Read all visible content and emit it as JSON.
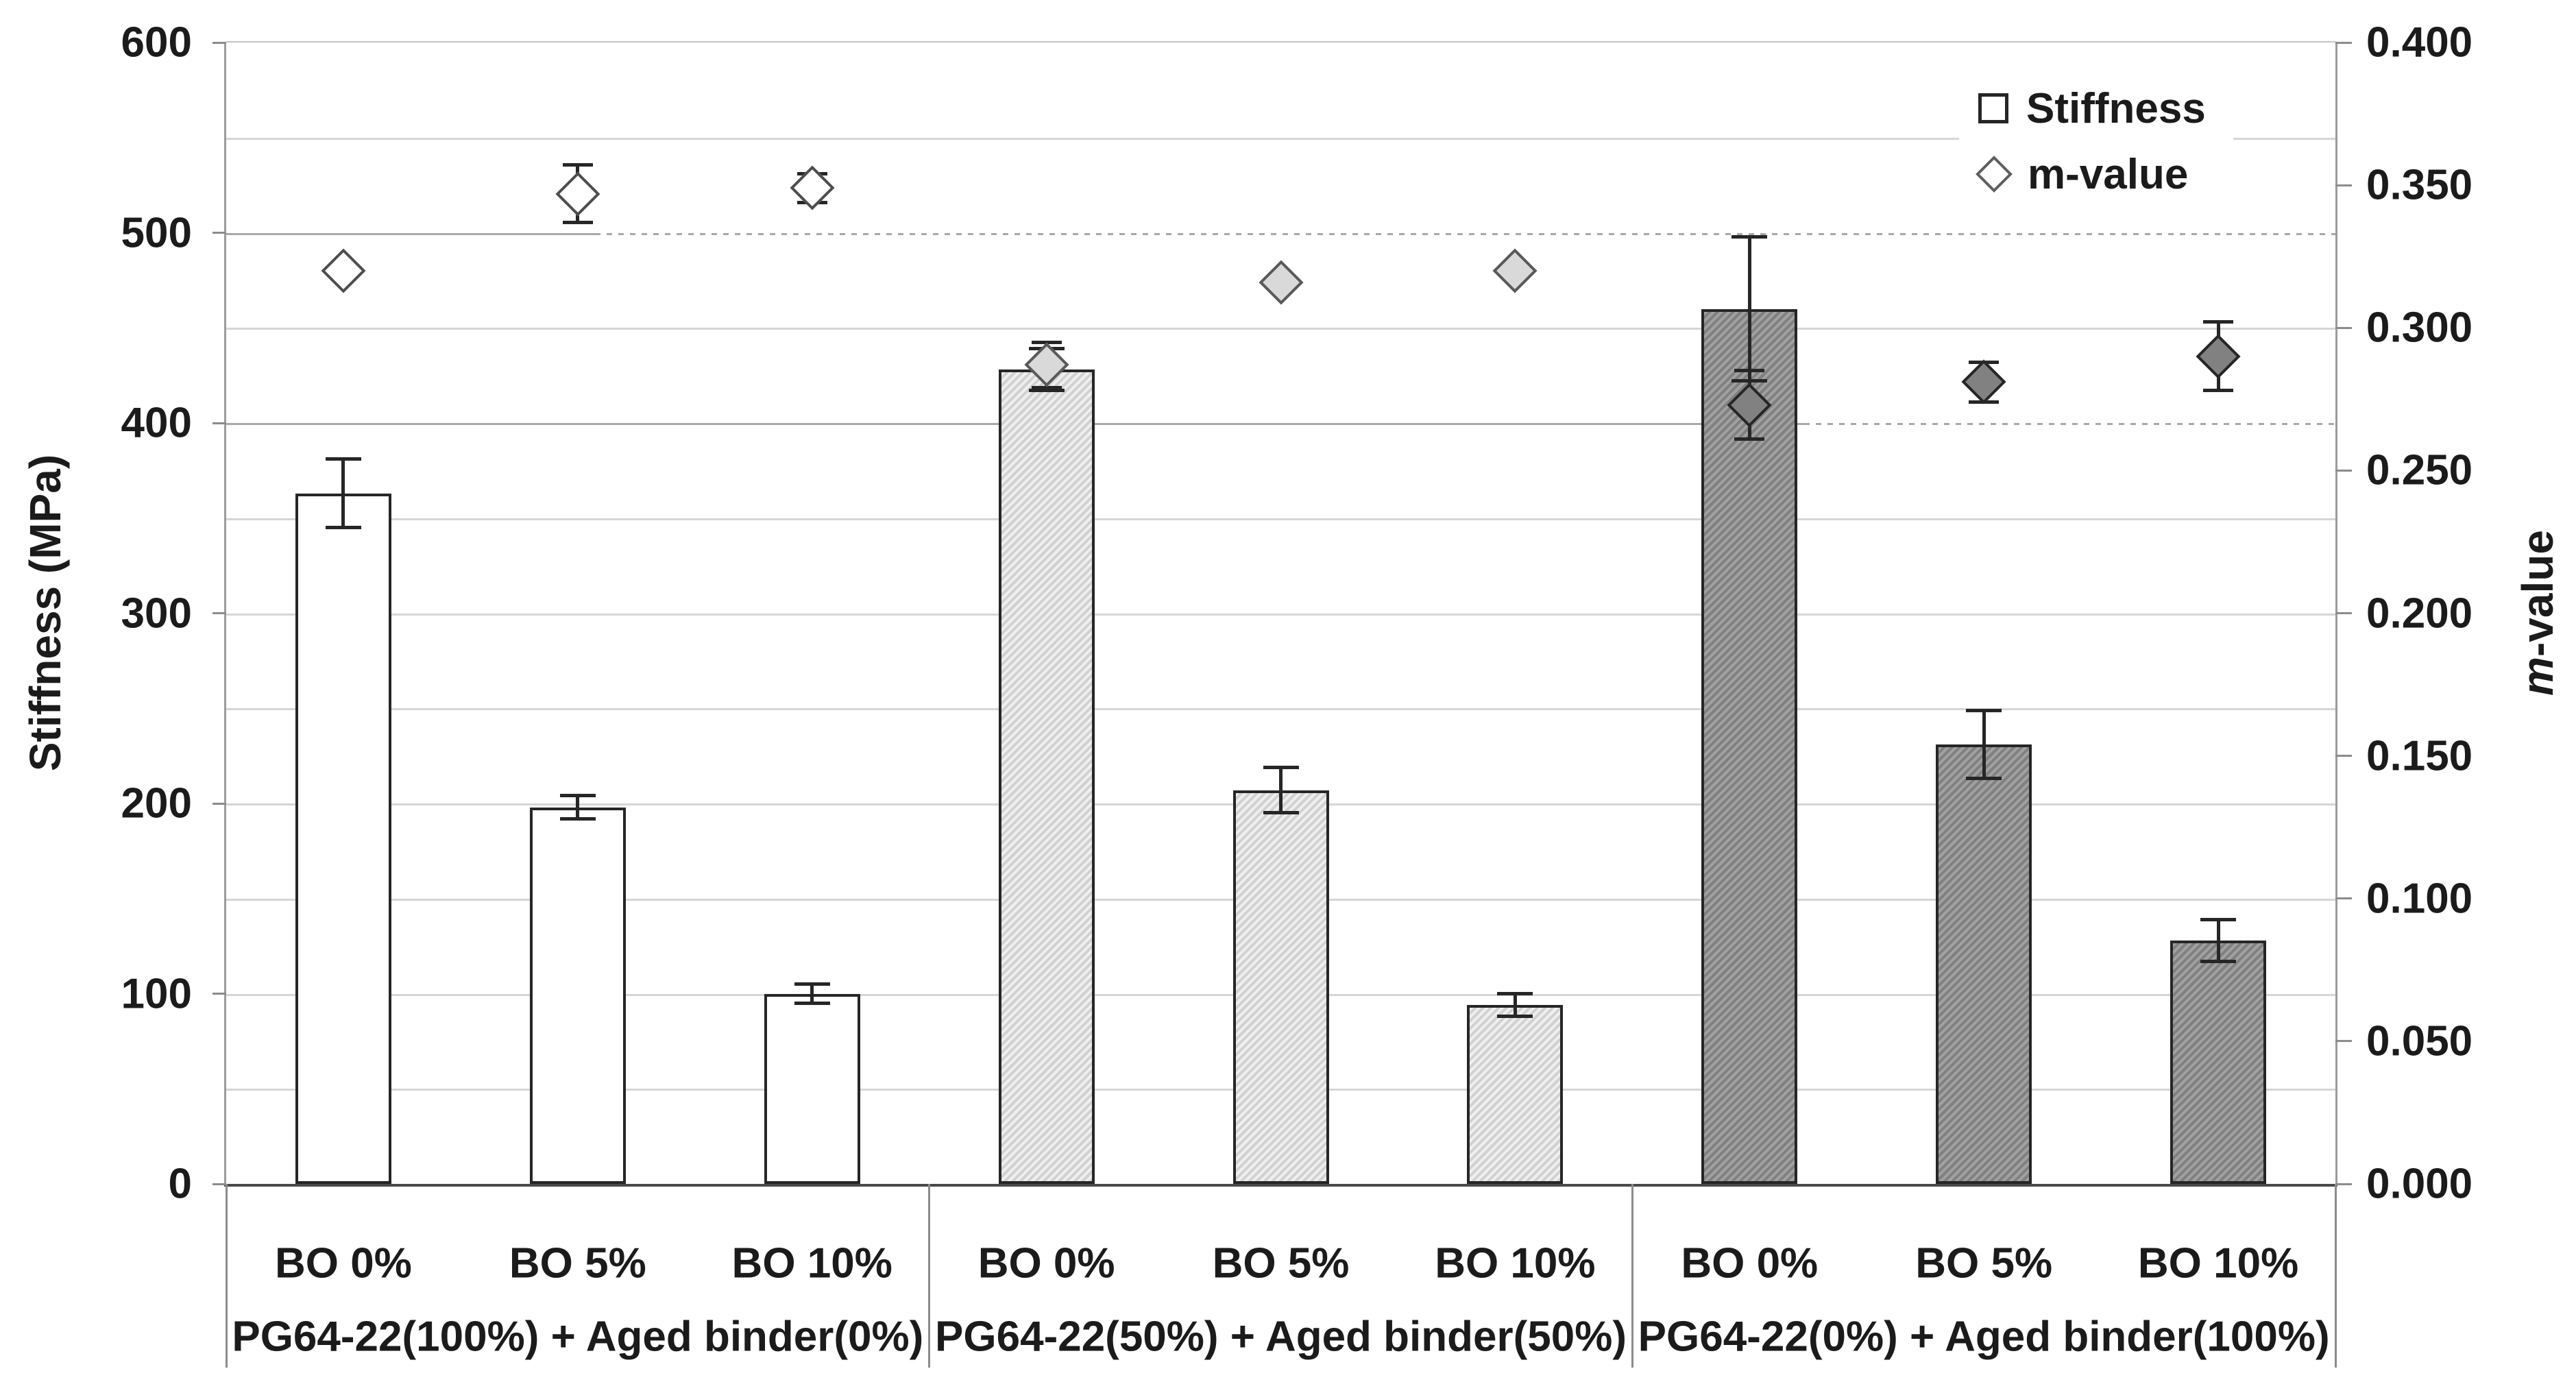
{
  "chart_data": {
    "type": "bar",
    "subtype": "dual-axis bar + diamond scatter with error bars",
    "categories": [
      "BO 0%",
      "BO 5%",
      "BO 10%",
      "BO 0%",
      "BO 5%",
      "BO 10%",
      "BO 0%",
      "BO 5%",
      "BO 10%"
    ],
    "groups": [
      {
        "label": "PG64-22(100%) + Aged binder(0%)",
        "span": 3
      },
      {
        "label": "PG64-22(50%) + Aged binder(50%)",
        "span": 3
      },
      {
        "label": "PG64-22(0%) + Aged binder(100%)",
        "span": 3
      }
    ],
    "series": [
      {
        "name": "Stiffness",
        "axis": "left",
        "marker": "bar",
        "values": [
          363,
          198,
          100,
          428,
          207,
          94,
          460,
          231,
          128
        ],
        "errors": [
          18,
          6,
          5,
          11,
          12,
          6,
          38,
          18,
          11
        ]
      },
      {
        "name": "m-value",
        "axis": "right",
        "marker": "diamond",
        "values": [
          0.32,
          0.347,
          0.349,
          0.287,
          0.316,
          0.32,
          0.273,
          0.281,
          0.29
        ],
        "errors": [
          0,
          0.01,
          0.005,
          0.008,
          0,
          0,
          0.012,
          0.007,
          0.012
        ]
      }
    ],
    "left_axis": {
      "title": "Stiffness (MPa)",
      "min": 0,
      "max": 600,
      "tick_labels": [
        "600",
        "500",
        "400",
        "300",
        "200",
        "100",
        "0"
      ],
      "label_step": 100,
      "gridline_step": 50
    },
    "right_axis": {
      "title_italic": "m",
      "title_rest": "-value",
      "min": 0.0,
      "max": 0.4,
      "tick_labels": [
        "0.400",
        "0.350",
        "0.300",
        "0.250",
        "0.200",
        "0.150",
        "0.100",
        "0.050",
        "0.000"
      ],
      "label_step": 0.05
    },
    "reference_dashed_lines": [
      {
        "left_axis_value": 500,
        "solid_from_fraction": 0.0,
        "dotted_from_fraction": 0.175
      },
      {
        "left_axis_value": 400,
        "solid_from_fraction": 0.0,
        "dotted_from_fraction": 0.748
      }
    ],
    "legend": {
      "items": [
        {
          "label": "Stiffness",
          "marker": "square"
        },
        {
          "label": "m-value",
          "marker": "diamond"
        }
      ]
    },
    "ylim_left": [
      0,
      600
    ],
    "ylim_right": [
      0.0,
      0.4
    ],
    "grid": "on"
  }
}
